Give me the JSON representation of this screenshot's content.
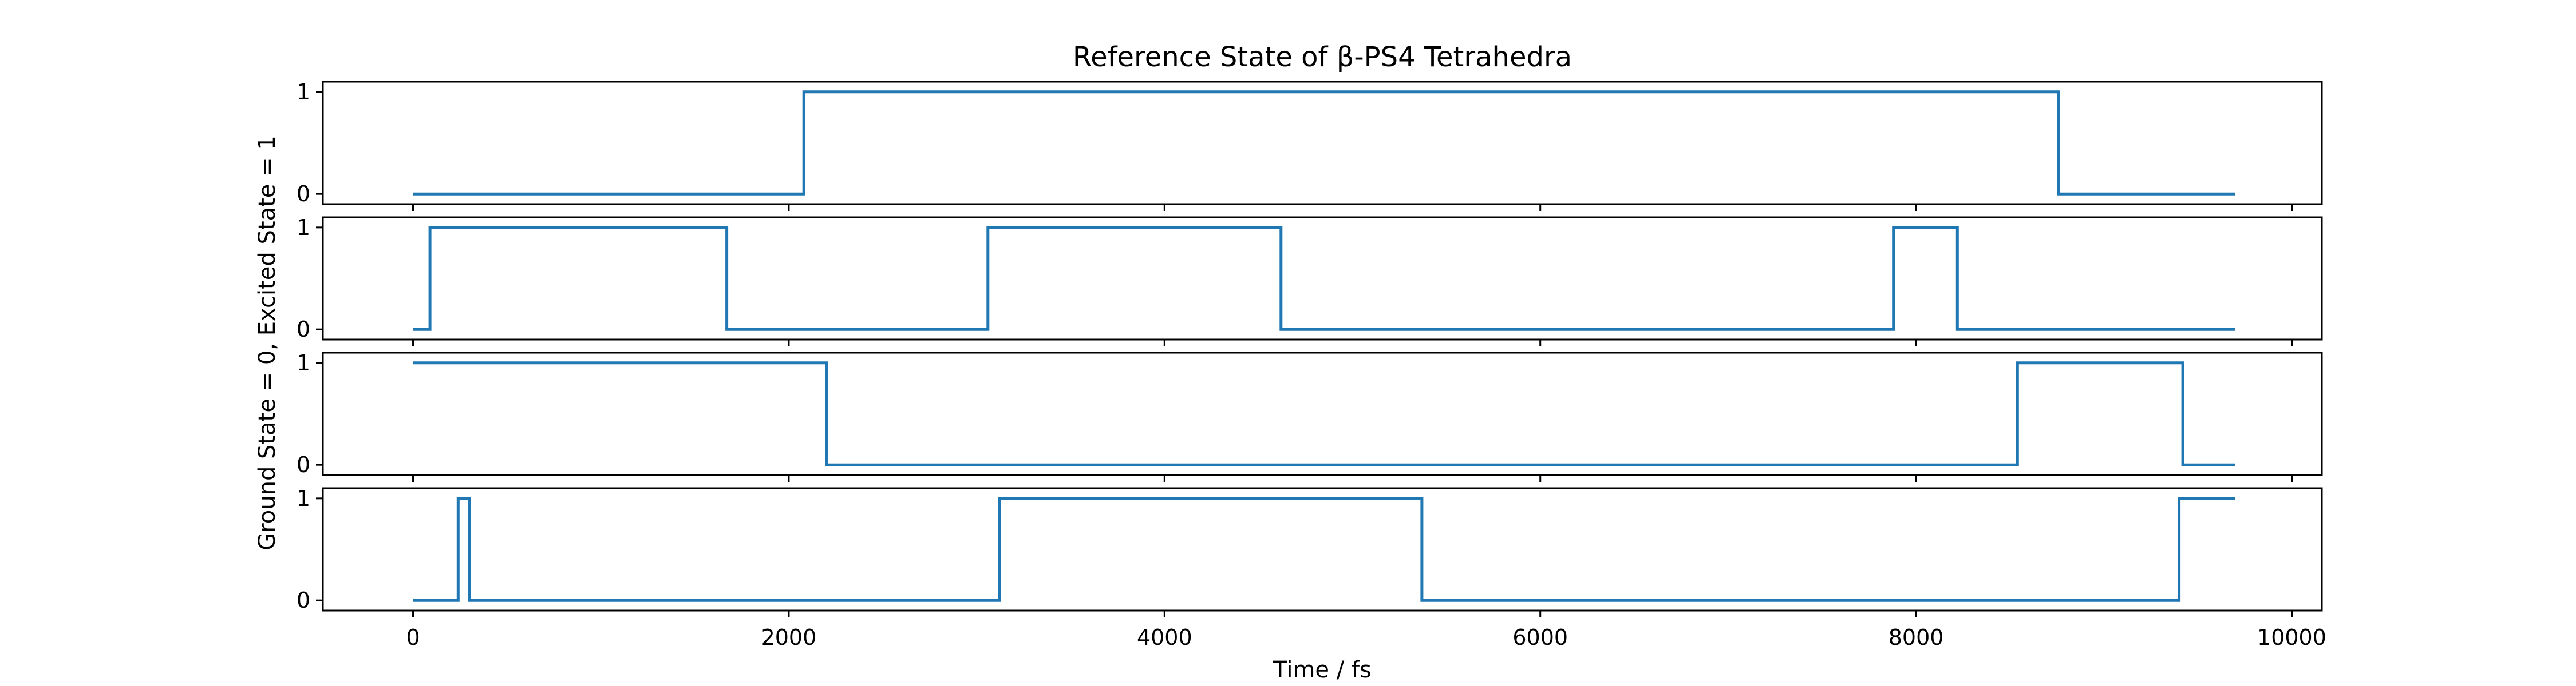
{
  "chart_data": {
    "type": "line",
    "title": "Reference State of β-PS4 Tetrahedra",
    "xlabel": "Time / fs",
    "ylabel": "Ground State = 0, Excited State = 1",
    "xlim": [
      -480,
      10160
    ],
    "ylim": [
      -0.1,
      1.1
    ],
    "xticks": [
      0,
      2000,
      4000,
      6000,
      8000,
      10000
    ],
    "yticks": [
      0,
      1
    ],
    "line_color": "#1f77b4",
    "grid": false,
    "subplots": [
      {
        "segments": [
          [
            0,
            0
          ],
          [
            2080,
            1
          ],
          [
            8760,
            0
          ],
          [
            9700,
            0
          ]
        ]
      },
      {
        "segments": [
          [
            0,
            0
          ],
          [
            90,
            1
          ],
          [
            1670,
            0
          ],
          [
            3060,
            1
          ],
          [
            4620,
            0
          ],
          [
            7880,
            1
          ],
          [
            8220,
            0
          ],
          [
            9700,
            0
          ]
        ]
      },
      {
        "segments": [
          [
            0,
            1
          ],
          [
            2200,
            0
          ],
          [
            8540,
            1
          ],
          [
            9420,
            0
          ],
          [
            9700,
            0
          ]
        ]
      },
      {
        "segments": [
          [
            0,
            0
          ],
          [
            240,
            1
          ],
          [
            300,
            0
          ],
          [
            3120,
            1
          ],
          [
            5370,
            0
          ],
          [
            9400,
            1
          ],
          [
            9700,
            1
          ]
        ]
      }
    ]
  }
}
